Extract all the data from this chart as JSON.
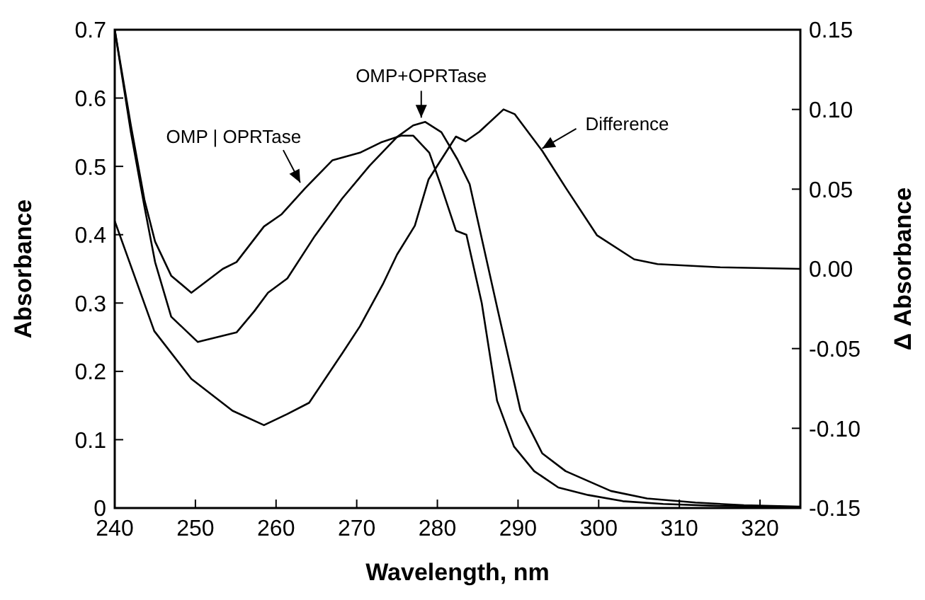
{
  "chart_data": {
    "type": "line",
    "xlabel": "Wavelength, nm",
    "ylabel": "Absorbance",
    "y2label": "Δ Absorbance",
    "xlim": [
      240,
      325
    ],
    "xticks": [
      240,
      250,
      260,
      270,
      280,
      290,
      300,
      310,
      320
    ],
    "ylim": [
      0,
      0.7
    ],
    "yticks": [
      0,
      0.1,
      0.2,
      0.3,
      0.4,
      0.5,
      0.6,
      0.7
    ],
    "y2lim": [
      -0.15,
      0.15
    ],
    "y2ticks": [
      {
        "value": -0.15,
        "label": "-0.15"
      },
      {
        "value": -0.1,
        "label": "-0.10"
      },
      {
        "value": -0.05,
        "label": "-0.05"
      },
      {
        "value": 0,
        "label": "0.00"
      },
      {
        "value": 0.05,
        "label": "0.05"
      },
      {
        "value": 0.1,
        "label": "0.10"
      },
      {
        "value": 0.15,
        "label": "0.15"
      }
    ],
    "grid": false,
    "legend": false,
    "marker": "none",
    "line_style": "solid",
    "series": [
      {
        "color": "#000000",
        "x": [
          240,
          242,
          243.7,
          245,
          247,
          249.5,
          253.4,
          255.1,
          258.5,
          260.7,
          263.6,
          267,
          270.4,
          273,
          275.5,
          277,
          279,
          280.5,
          282.3,
          283.6,
          285.5,
          287.4,
          289.5,
          292,
          295,
          298.7,
          303,
          308,
          315,
          325
        ],
        "values": [
          0.7,
          0.56,
          0.45,
          0.39,
          0.34,
          0.315,
          0.35,
          0.36,
          0.412,
          0.43,
          0.468,
          0.509,
          0.52,
          0.535,
          0.545,
          0.545,
          0.52,
          0.47,
          0.406,
          0.4,
          0.3,
          0.157,
          0.09,
          0.054,
          0.03,
          0.019,
          0.01,
          0.006,
          0.003,
          0.001
        ]
      },
      {
        "color": "#000000",
        "x": [
          240,
          242,
          243.7,
          245,
          247,
          250.3,
          255.1,
          257.3,
          259,
          261.4,
          264.8,
          268.2,
          271.6,
          275,
          277,
          278.5,
          280.5,
          282.5,
          284,
          287.4,
          290.3,
          293,
          295.9,
          301.5,
          306,
          312,
          318,
          325
        ],
        "values": [
          0.7,
          0.55,
          0.44,
          0.36,
          0.28,
          0.243,
          0.257,
          0.288,
          0.315,
          0.336,
          0.398,
          0.453,
          0.501,
          0.543,
          0.56,
          0.565,
          0.55,
          0.51,
          0.474,
          0.294,
          0.143,
          0.08,
          0.054,
          0.025,
          0.014,
          0.008,
          0.004,
          0.002
        ]
      },
      {
        "color": "#000000",
        "axis": "y2",
        "x": [
          240,
          244.9,
          249.5,
          254.6,
          258.5,
          261.4,
          264.1,
          268.2,
          270.4,
          273.3,
          275,
          277.2,
          278.9,
          282.3,
          283.5,
          285.2,
          288.2,
          289.6,
          293,
          295.9,
          299.8,
          304.4,
          307.3,
          315,
          325
        ],
        "values": [
          0.03,
          -0.039,
          -0.069,
          -0.089,
          -0.098,
          -0.091,
          -0.084,
          -0.053,
          -0.036,
          -0.009,
          0.009,
          0.027,
          0.056,
          0.083,
          0.08,
          0.086,
          0.1,
          0.097,
          0.074,
          0.051,
          0.021,
          0.006,
          0.003,
          0.001,
          0
        ]
      }
    ],
    "annotations": [
      {
        "text": "OMP | OPRTase",
        "x": 263,
        "y": 0.47
      },
      {
        "text": "OMP+OPRTase",
        "x": 278,
        "y": 0.565
      },
      {
        "text": "Difference",
        "x": 293,
        "y": 0.52
      }
    ]
  }
}
